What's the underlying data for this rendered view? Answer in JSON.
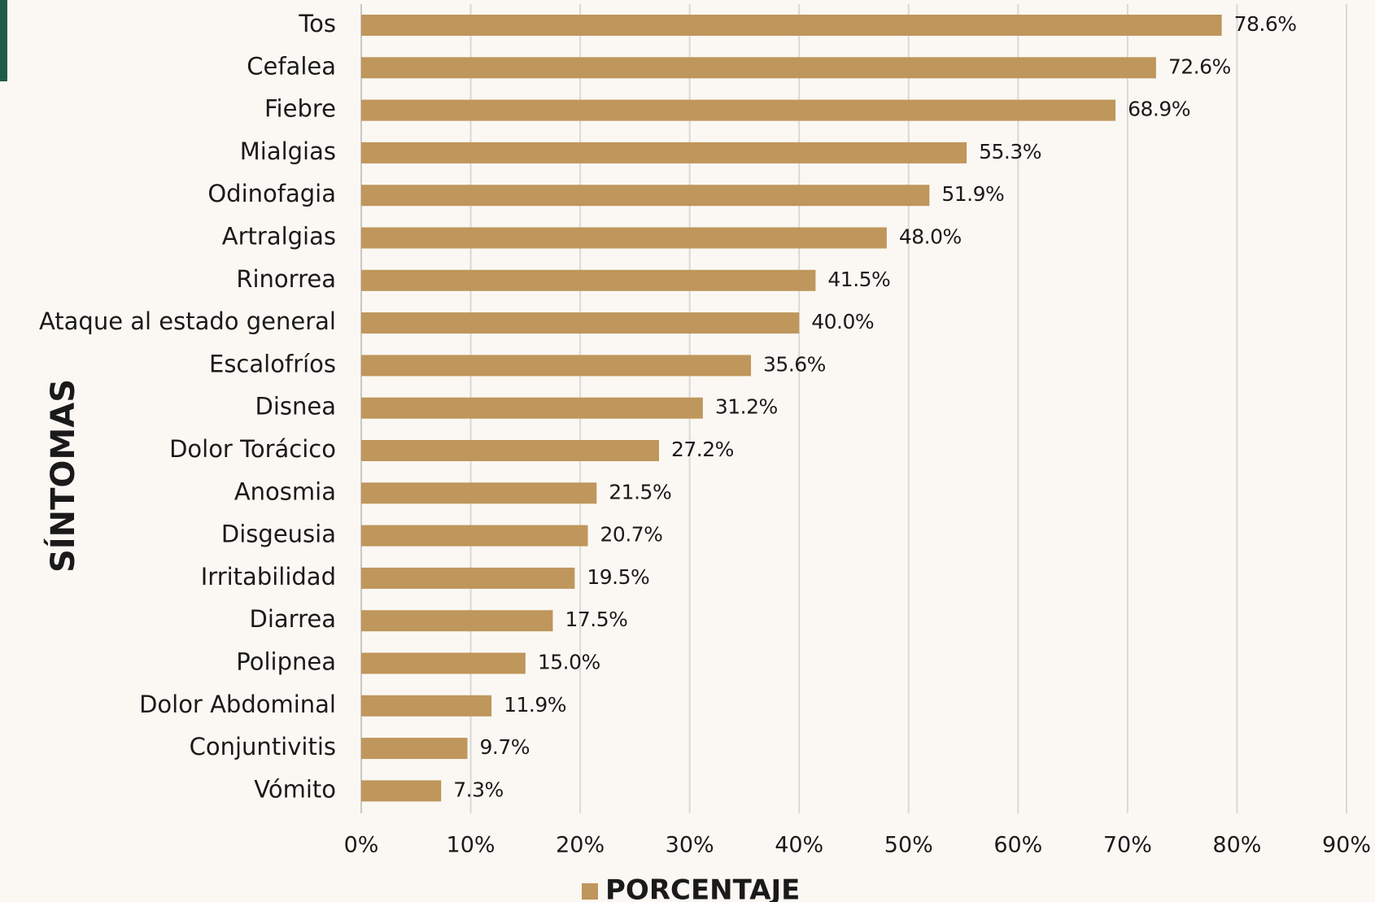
{
  "chart_data": {
    "type": "bar",
    "orientation": "horizontal",
    "y_axis_label": "SÍNTOMAS",
    "categories": [
      "Tos",
      "Cefalea",
      "Fiebre",
      "Mialgias",
      "Odinofagia",
      "Artralgias",
      "Rinorrea",
      "Ataque al estado general",
      "Escalofríos",
      "Disnea",
      "Dolor Torácico",
      "Anosmia",
      "Disgeusia",
      "Irritabilidad",
      "Diarrea",
      "Polipnea",
      "Dolor Abdominal",
      "Conjuntivitis",
      "Vómito"
    ],
    "series": [
      {
        "name": "PORCENTAJE",
        "color": "#bf965b",
        "values": [
          78.6,
          72.6,
          68.9,
          55.3,
          51.9,
          48.0,
          41.5,
          40.0,
          35.6,
          31.2,
          27.2,
          21.5,
          20.7,
          19.5,
          17.5,
          15.0,
          11.9,
          9.7,
          7.3
        ],
        "value_labels": [
          "78.6%",
          "72.6%",
          "68.9%",
          "55.3%",
          "51.9%",
          "48.0%",
          "41.5%",
          "40.0%",
          "35.6%",
          "31.2%",
          "27.2%",
          "21.5%",
          "20.7%",
          "19.5%",
          "17.5%",
          "15.0%",
          "11.9%",
          "9.7%",
          "7.3%"
        ]
      }
    ],
    "xlim": [
      0,
      90
    ],
    "xticks": [
      {
        "value": 0,
        "label": "0%"
      },
      {
        "value": 10,
        "label": "10%"
      },
      {
        "value": 20,
        "label": "20%"
      },
      {
        "value": 30,
        "label": "30%"
      },
      {
        "value": 40,
        "label": "40%"
      },
      {
        "value": 50,
        "label": "50%"
      },
      {
        "value": 60,
        "label": "60%"
      },
      {
        "value": 70,
        "label": "70%"
      },
      {
        "value": 80,
        "label": "80%"
      },
      {
        "value": 90,
        "label": "90%"
      }
    ],
    "grid": true,
    "legend": "bottom"
  }
}
